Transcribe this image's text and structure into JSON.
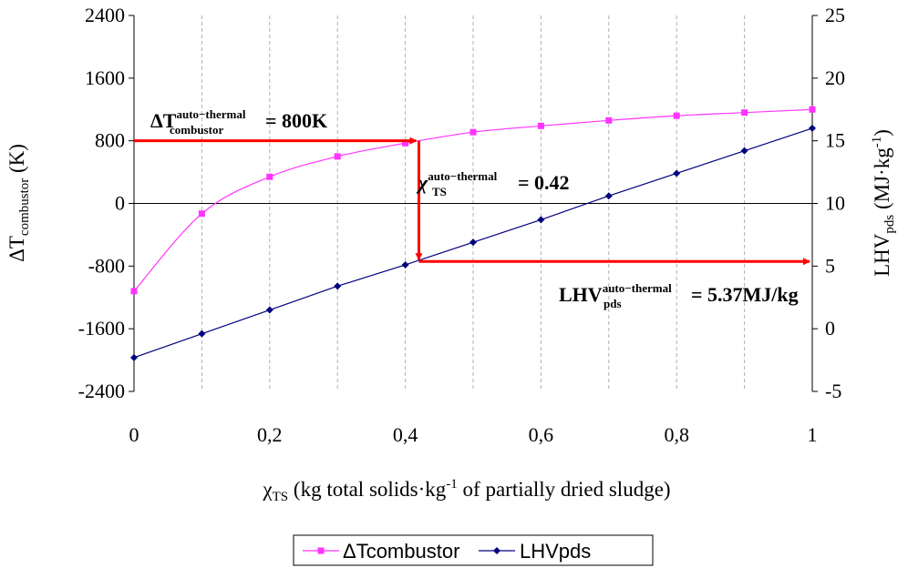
{
  "chart_data": {
    "type": "line",
    "x": [
      0,
      0.1,
      0.2,
      0.3,
      0.4,
      0.5,
      0.6,
      0.7,
      0.8,
      0.9,
      1.0
    ],
    "x_ticks": [
      "0",
      "0,2",
      "0,4",
      "0,6",
      "0,8",
      "1"
    ],
    "xlim": [
      0,
      1
    ],
    "xlabel": "χTS (kg total solids·kg-1 of partially dried sludge)",
    "ylabel_left": "ΔTcombustor (K)",
    "ylabel_right": "LHVpds (MJ·kg-1)",
    "ylim_left": [
      -2400,
      2400
    ],
    "ylim_right": [
      -5,
      25
    ],
    "y_ticks_left": [
      "2400",
      "1600",
      "800",
      "0",
      "-800",
      "-1600",
      "-2400"
    ],
    "y_ticks_right": [
      "25",
      "20",
      "15",
      "10",
      "5",
      "0",
      "-5"
    ],
    "grid": "vertical dashed",
    "legend_position": "bottom",
    "series": [
      {
        "name": "ΔTcombustor",
        "axis": "left",
        "color": "#ff33ff",
        "marker": "square",
        "values": [
          -1120,
          -130,
          340,
          600,
          770,
          910,
          990,
          1060,
          1120,
          1160,
          1200
        ]
      },
      {
        "name": "LHVpds",
        "axis": "right",
        "color": "#000080",
        "marker": "diamond",
        "values": [
          -2.3,
          -0.4,
          1.5,
          3.4,
          5.1,
          6.9,
          8.7,
          10.6,
          12.4,
          14.2,
          16.0
        ]
      }
    ],
    "annotations": {
      "dt_label": "ΔT",
      "dt_sup": "auto−thermal",
      "dt_sub": "combustor",
      "dt_value": "= 800K",
      "chi_label": "χ",
      "chi_sup": "auto−thermal",
      "chi_sub": "TS",
      "chi_value": "= 0.42",
      "lhv_label": "LHV",
      "lhv_sup": "auto−thermal",
      "lhv_sub": "pds",
      "lhv_value": "= 5.37MJ/kg",
      "arrow_color": "#ff0000",
      "dt_auto": 800,
      "chi_auto": 0.42,
      "lhv_auto": 5.37
    }
  }
}
